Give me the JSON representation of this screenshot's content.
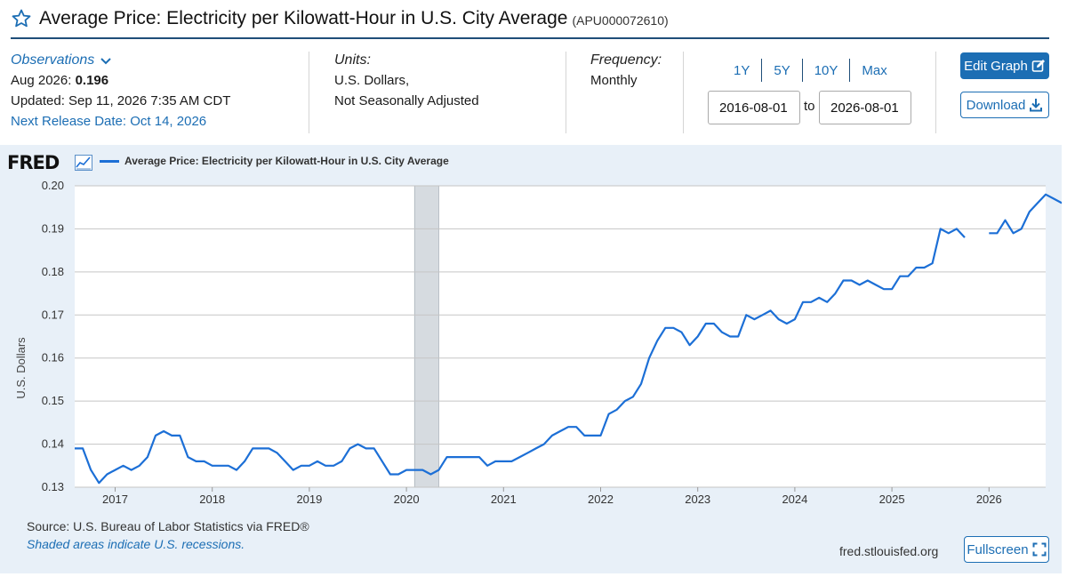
{
  "header": {
    "title": "Average Price: Electricity per Kilowatt-Hour in U.S. City Average",
    "series_id": "(APU000072610)"
  },
  "observations": {
    "label": "Observations",
    "latest_period": "Aug 2026:",
    "latest_value": "0.196",
    "updated": "Updated: Sep 11, 2026 7:35 AM CDT",
    "next_release": "Next Release Date: Oct 14, 2026"
  },
  "units": {
    "label": "Units:",
    "line1": "U.S. Dollars,",
    "line2": "Not Seasonally Adjusted"
  },
  "frequency": {
    "label": "Frequency:",
    "value": "Monthly"
  },
  "range": {
    "links": [
      "1Y",
      "5Y",
      "10Y",
      "Max"
    ],
    "start": "2016-08-01",
    "to_label": "to",
    "end": "2026-08-01"
  },
  "buttons": {
    "edit_graph": "Edit Graph",
    "download": "Download",
    "fullscreen": "Fullscreen"
  },
  "footer": {
    "source": "Source: U.S. Bureau of Labor Statistics via FRED®",
    "recession_note": "Shaded areas indicate U.S. recessions.",
    "url": "fred.stlouisfed.org"
  },
  "logo": {
    "text": "FRED"
  },
  "colors": {
    "line": "#1c6fd6",
    "accent": "#1c6eb4",
    "panel_bg": "#e8f0f8",
    "recession": "#d6dbe0"
  },
  "chart_data": {
    "type": "line",
    "title": "",
    "xlabel": "",
    "ylabel": "U.S. Dollars",
    "ylim": [
      0.13,
      0.2
    ],
    "xlim": [
      "2016-08",
      "2026-08"
    ],
    "yticks": [
      "0.13",
      "0.14",
      "0.15",
      "0.16",
      "0.17",
      "0.18",
      "0.19",
      "0.20"
    ],
    "xticks": [
      "2017",
      "2018",
      "2019",
      "2020",
      "2021",
      "2022",
      "2023",
      "2024",
      "2025",
      "2026"
    ],
    "grid": true,
    "legend_position": "top-left",
    "recessions": [
      {
        "start": "2020-02",
        "end": "2020-04"
      }
    ],
    "series": [
      {
        "name": "Average Price: Electricity per Kilowatt-Hour in U.S. City Average",
        "start": "2016-08",
        "values": [
          0.139,
          0.139,
          0.134,
          0.131,
          0.133,
          0.134,
          0.135,
          0.134,
          0.135,
          0.137,
          0.142,
          0.143,
          0.142,
          0.142,
          0.137,
          0.136,
          0.136,
          0.135,
          0.135,
          0.135,
          0.134,
          0.136,
          0.139,
          0.139,
          0.139,
          0.138,
          0.136,
          0.134,
          0.135,
          0.135,
          0.136,
          0.135,
          0.135,
          0.136,
          0.139,
          0.14,
          0.139,
          0.139,
          0.136,
          0.133,
          0.133,
          0.134,
          0.134,
          0.134,
          0.133,
          0.134,
          0.137,
          0.137,
          0.137,
          0.137,
          0.137,
          0.135,
          0.136,
          0.136,
          0.136,
          0.137,
          0.138,
          0.139,
          0.14,
          0.142,
          0.143,
          0.144,
          0.144,
          0.142,
          0.142,
          0.142,
          0.147,
          0.148,
          0.15,
          0.151,
          0.154,
          0.16,
          0.164,
          0.167,
          0.167,
          0.166,
          0.163,
          0.165,
          0.168,
          0.168,
          0.166,
          0.165,
          0.165,
          0.17,
          0.169,
          0.17,
          0.171,
          0.169,
          0.168,
          0.169,
          0.173,
          0.173,
          0.174,
          0.173,
          0.175,
          0.178,
          0.178,
          0.177,
          0.178,
          0.177,
          0.176,
          0.176,
          0.179,
          0.179,
          0.181,
          0.181,
          0.182,
          0.19,
          0.189,
          0.19,
          0.188,
          null,
          null,
          0.189,
          0.189,
          0.192,
          0.189,
          0.19,
          0.194,
          0.196,
          0.198,
          0.197,
          0.196
        ]
      }
    ]
  }
}
